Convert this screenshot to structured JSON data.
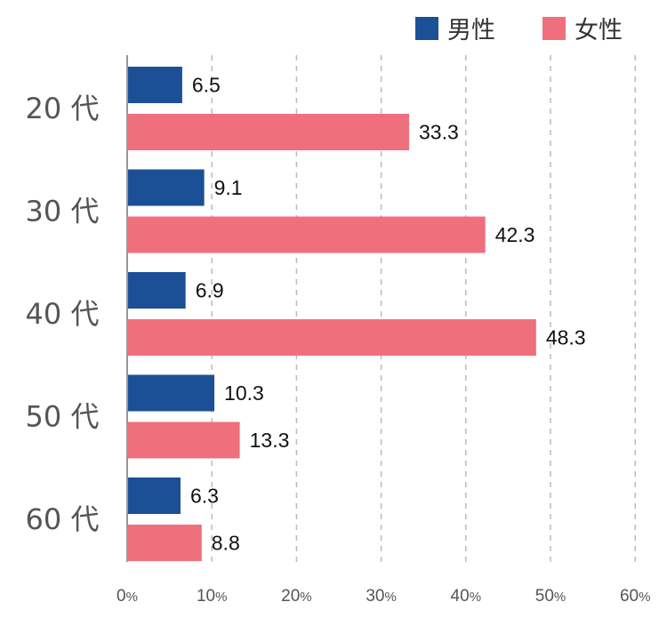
{
  "chart_data": {
    "type": "bar",
    "orientation": "horizontal",
    "categories": [
      "20 代",
      "30 代",
      "40 代",
      "50 代",
      "60 代"
    ],
    "series": [
      {
        "name": "男性",
        "color": "#1b5097",
        "values": [
          6.5,
          9.1,
          6.9,
          10.3,
          6.3
        ]
      },
      {
        "name": "女性",
        "color": "#ef707c",
        "values": [
          33.3,
          42.3,
          48.3,
          13.3,
          8.8
        ]
      }
    ],
    "xlim": [
      0,
      60
    ],
    "xticks": [
      {
        "value": 0,
        "label": "0",
        "unit": "%"
      },
      {
        "value": 10,
        "label": "10",
        "unit": "%"
      },
      {
        "value": 20,
        "label": "20",
        "unit": "%"
      },
      {
        "value": 30,
        "label": "30",
        "unit": "%"
      },
      {
        "value": 40,
        "label": "40",
        "unit": "%"
      },
      {
        "value": 50,
        "label": "50",
        "unit": "%"
      },
      {
        "value": 60,
        "label": "60",
        "unit": "%"
      }
    ],
    "grid": "vertical-dashed",
    "legend_position": "top-right"
  }
}
